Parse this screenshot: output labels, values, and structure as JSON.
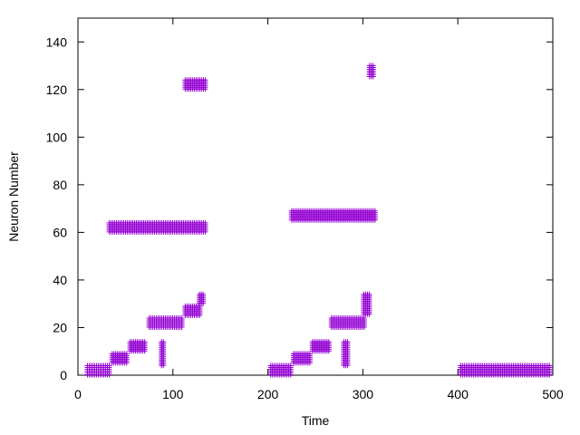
{
  "chart_data": {
    "type": "scatter",
    "title": "",
    "xlabel": "Time",
    "ylabel": "Neuron Number",
    "xlim": [
      0,
      500
    ],
    "ylim": [
      0,
      150
    ],
    "xticks": [
      0,
      100,
      200,
      300,
      400,
      500
    ],
    "yticks": [
      0,
      20,
      40,
      60,
      80,
      100,
      120,
      140
    ],
    "grid": false,
    "marker": "+",
    "series": [
      {
        "color": "#9400d3",
        "segments": [
          {
            "x0": 10,
            "x1": 33,
            "y0": 0,
            "y1": 4
          },
          {
            "x0": 36,
            "x1": 52,
            "y0": 5,
            "y1": 9
          },
          {
            "x0": 55,
            "x1": 72,
            "y0": 10,
            "y1": 14
          },
          {
            "x0": 75,
            "x1": 110,
            "y0": 20,
            "y1": 24
          },
          {
            "x0": 113,
            "x1": 130,
            "y0": 25,
            "y1": 29
          },
          {
            "x0": 128,
            "x1": 133,
            "y0": 30,
            "y1": 34
          },
          {
            "x0": 88,
            "x1": 91,
            "y0": 4,
            "y1": 14
          },
          {
            "x0": 33,
            "x1": 135,
            "y0": 60,
            "y1": 64
          },
          {
            "x0": 113,
            "x1": 135,
            "y0": 120,
            "y1": 124
          },
          {
            "x0": 203,
            "x1": 225,
            "y0": 0,
            "y1": 4
          },
          {
            "x0": 227,
            "x1": 245,
            "y0": 5,
            "y1": 9
          },
          {
            "x0": 247,
            "x1": 265,
            "y0": 10,
            "y1": 14
          },
          {
            "x0": 267,
            "x1": 303,
            "y0": 20,
            "y1": 24
          },
          {
            "x0": 301,
            "x1": 308,
            "y0": 25,
            "y1": 34
          },
          {
            "x0": 280,
            "x1": 284,
            "y0": 4,
            "y1": 14
          },
          {
            "x0": 225,
            "x1": 313,
            "y0": 65,
            "y1": 69
          },
          {
            "x0": 307,
            "x1": 312,
            "y0": 125,
            "y1": 130
          },
          {
            "x0": 403,
            "x1": 498,
            "y0": 0,
            "y1": 4
          }
        ]
      }
    ]
  }
}
